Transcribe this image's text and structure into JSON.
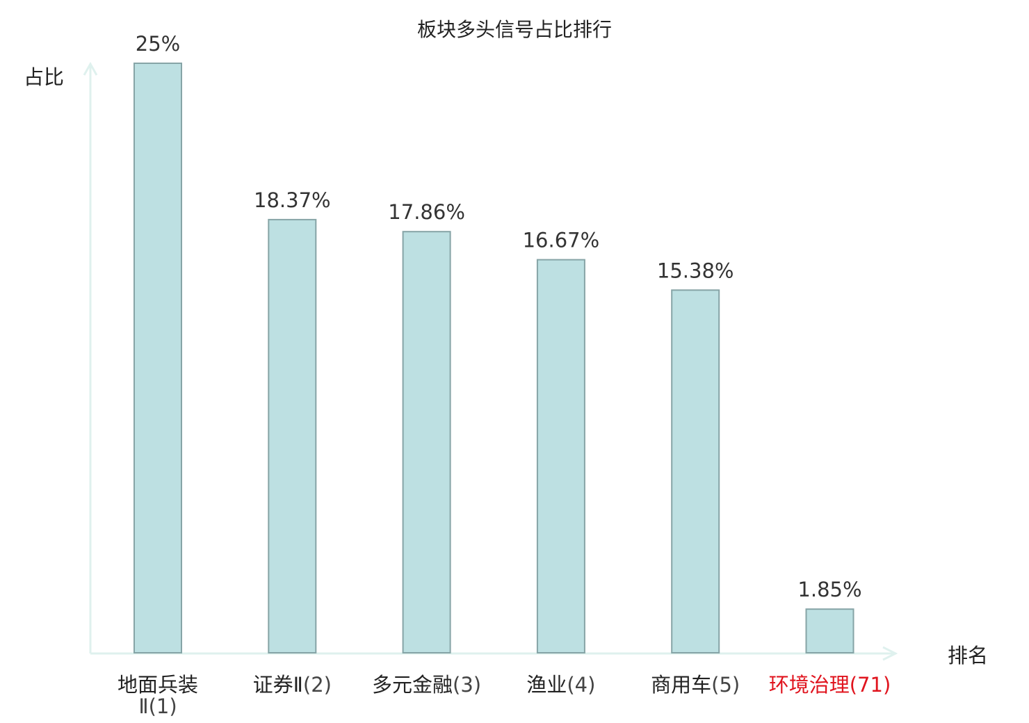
{
  "chart_data": {
    "type": "bar",
    "title": "板块多头信号占比排行",
    "ylabel": "占比",
    "xlabel": "排名",
    "categories": [
      {
        "name": "地面兵装Ⅱ",
        "rank": "(1)",
        "highlight": false
      },
      {
        "name": "证券Ⅱ",
        "rank": "(2)",
        "highlight": false
      },
      {
        "name": "多元金融",
        "rank": "(3)",
        "highlight": false
      },
      {
        "name": "渔业",
        "rank": "(4)",
        "highlight": false
      },
      {
        "name": "商用车",
        "rank": "(5)",
        "highlight": false
      },
      {
        "name": "环境治理",
        "rank": "(71)",
        "highlight": true
      }
    ],
    "values": [
      25,
      18.37,
      17.86,
      16.67,
      15.38,
      1.85
    ],
    "value_labels": [
      "25%",
      "18.37%",
      "17.86%",
      "16.67%",
      "15.38%",
      "1.85%"
    ],
    "ylim": [
      0,
      25
    ],
    "grid": false,
    "legend": "none",
    "colors": {
      "bar_fill": "#bde0e2",
      "bar_stroke": "#86a4a6",
      "axis": "#dff1ee",
      "text": "#222222",
      "value_text": "#333333",
      "rank_text": "#444444",
      "highlight": "#e0141e"
    }
  }
}
